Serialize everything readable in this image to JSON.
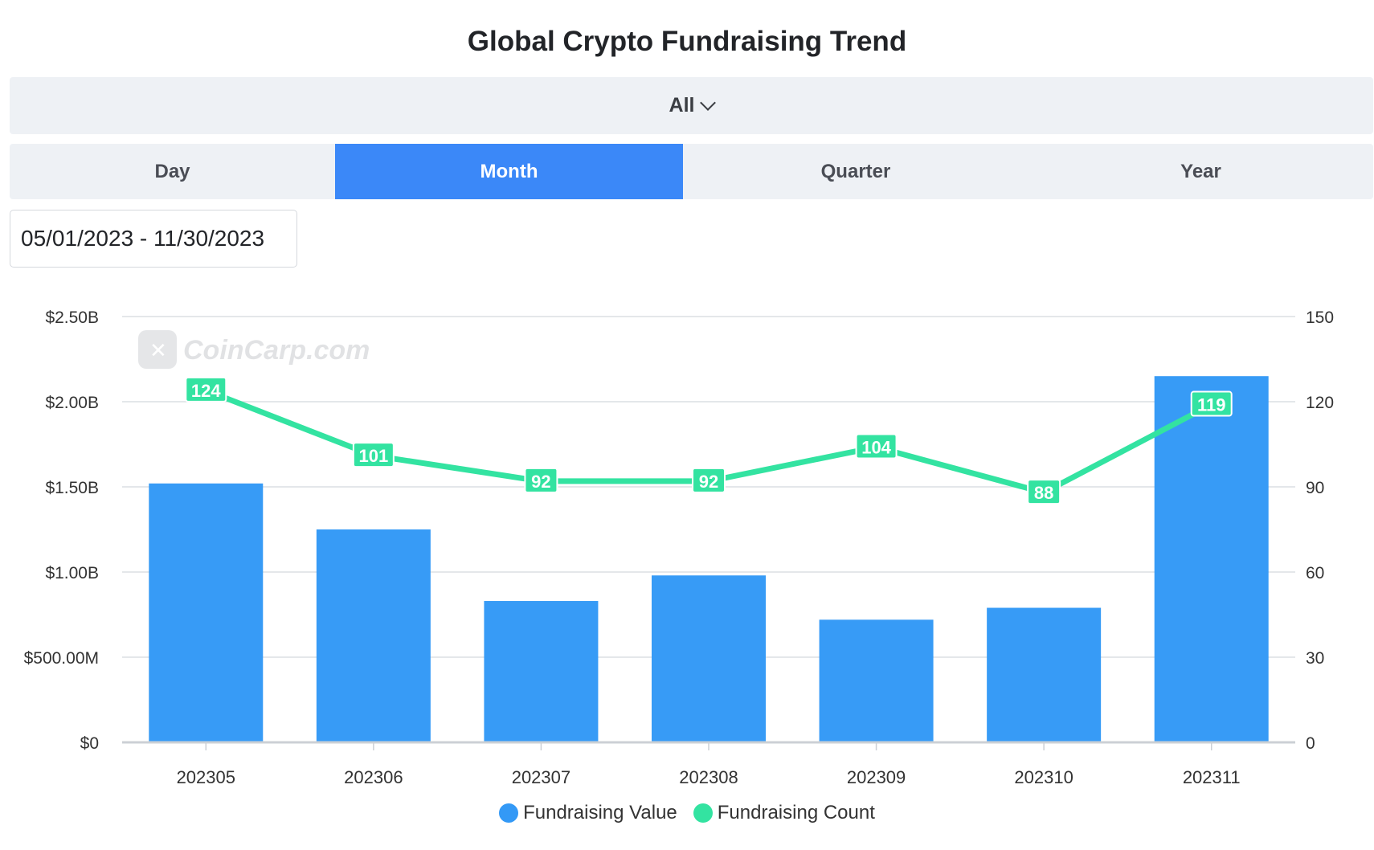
{
  "title": "Global Crypto Fundraising Trend",
  "filter": {
    "label": "All"
  },
  "tabs": [
    {
      "label": "Day"
    },
    {
      "label": "Month"
    },
    {
      "label": "Quarter"
    },
    {
      "label": "Year"
    }
  ],
  "active_tab": "Month",
  "date_range": "05/01/2023 - 11/30/2023",
  "watermark": "CoinCarp.com",
  "colors": {
    "bar": "#3399f6",
    "line": "#33e3a1",
    "active_tab": "#3b88f8",
    "panel": "#eef1f5"
  },
  "chart_data": {
    "type": "bar+line",
    "title": "",
    "categories": [
      "202305",
      "202306",
      "202307",
      "202308",
      "202309",
      "202310",
      "202311"
    ],
    "series": [
      {
        "name": "Fundraising Value",
        "type": "bar",
        "axis": "left",
        "values": [
          1520000000,
          1250000000,
          830000000,
          980000000,
          720000000,
          790000000,
          2150000000
        ]
      },
      {
        "name": "Fundraising Count",
        "type": "line",
        "axis": "right",
        "values": [
          124,
          101,
          92,
          92,
          104,
          88,
          119
        ]
      }
    ],
    "y_left": {
      "ticks": [
        "$0",
        "$500.00M",
        "$1.00B",
        "$1.50B",
        "$2.00B",
        "$2.50B"
      ],
      "min": 0,
      "max": 2500000000
    },
    "y_right": {
      "ticks": [
        "0",
        "30",
        "60",
        "90",
        "120",
        "150"
      ],
      "min": 0,
      "max": 150
    },
    "grid": true,
    "legend_position": "bottom-center"
  }
}
